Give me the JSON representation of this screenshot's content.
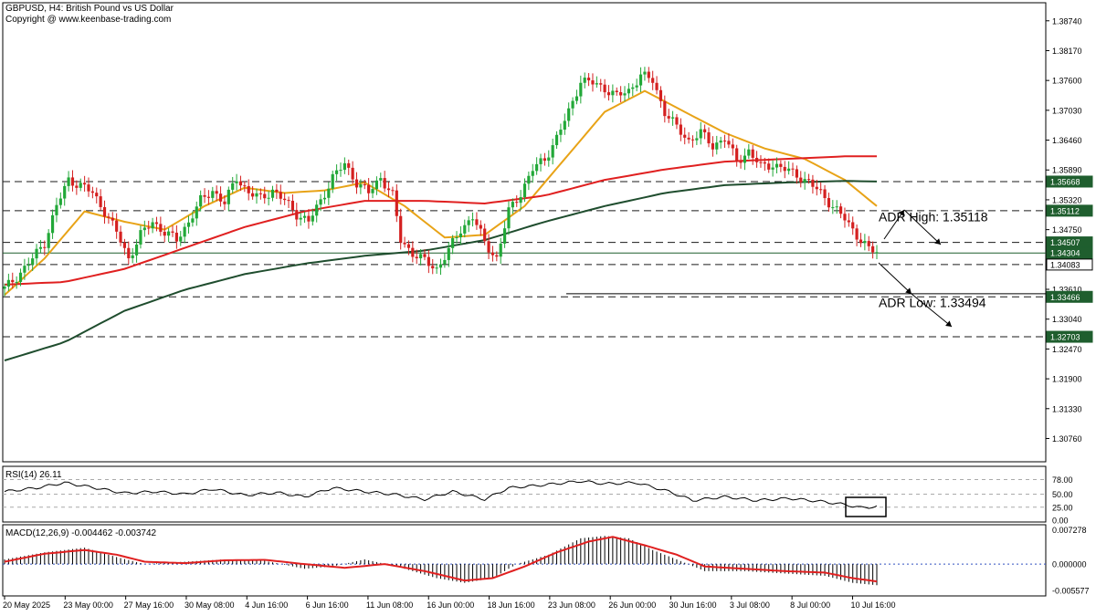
{
  "header": {
    "title": "GBPUSD, H4:  British Pound vs US Dollar",
    "copyright": "Copyright @ www.keenbase-trading.com"
  },
  "chart_data": {
    "type": "candlestick",
    "symbol": "GBPUSD",
    "timeframe": "H4",
    "price_axis": {
      "range": [
        1.3035,
        1.3905
      ],
      "ticks": [
        "1.38740",
        "1.38170",
        "1.37600",
        "1.37030",
        "1.36460",
        "1.35890",
        "1.35320",
        "1.34750",
        "1.33610",
        "1.33040",
        "1.32470",
        "1.31900",
        "1.31330",
        "1.30760"
      ]
    },
    "time_axis": {
      "labels": [
        "20 May 2025",
        "23 May 00:00",
        "27 May 16:00",
        "30 May 08:00",
        "4 Jun 16:00",
        "6 Jun 16:00",
        "11 Jun 08:00",
        "16 Jun 00:00",
        "18 Jun 16:00",
        "23 Jun 08:00",
        "26 Jun 00:00",
        "30 Jun 16:00",
        "3 Jul 08:00",
        "8 Jul 00:00",
        "10 Jul 16:00"
      ]
    },
    "close_path": [
      [
        0,
        1.3362
      ],
      [
        3,
        1.3385
      ],
      [
        6,
        1.341
      ],
      [
        10,
        1.345
      ],
      [
        13,
        1.352
      ],
      [
        16,
        1.357
      ],
      [
        19,
        1.356
      ],
      [
        22,
        1.3545
      ],
      [
        25,
        1.351
      ],
      [
        28,
        1.347
      ],
      [
        31,
        1.342
      ],
      [
        34,
        1.3465
      ],
      [
        37,
        1.349
      ],
      [
        40,
        1.347
      ],
      [
        43,
        1.3455
      ],
      [
        46,
        1.349
      ],
      [
        49,
        1.353
      ],
      [
        52,
        1.355
      ],
      [
        55,
        1.3525
      ],
      [
        58,
        1.3575
      ],
      [
        61,
        1.3545
      ],
      [
        64,
        1.3535
      ],
      [
        67,
        1.355
      ],
      [
        70,
        1.353
      ],
      [
        73,
        1.3505
      ],
      [
        76,
        1.349
      ],
      [
        79,
        1.353
      ],
      [
        82,
        1.3575
      ],
      [
        85,
        1.36
      ],
      [
        88,
        1.3565
      ],
      [
        91,
        1.3545
      ],
      [
        94,
        1.3575
      ],
      [
        97,
        1.354
      ],
      [
        99,
        1.3455
      ],
      [
        102,
        1.343
      ],
      [
        105,
        1.3415
      ],
      [
        108,
        1.34
      ],
      [
        111,
        1.3435
      ],
      [
        114,
        1.3475
      ],
      [
        117,
        1.35
      ],
      [
        120,
        1.345
      ],
      [
        123,
        1.342
      ],
      [
        126,
        1.351
      ],
      [
        129,
        1.3545
      ],
      [
        132,
        1.359
      ],
      [
        135,
        1.361
      ],
      [
        138,
        1.365
      ],
      [
        141,
        1.37
      ],
      [
        144,
        1.376
      ],
      [
        147,
        1.3755
      ],
      [
        150,
        1.3745
      ],
      [
        153,
        1.373
      ],
      [
        156,
        1.374
      ],
      [
        159,
        1.377
      ],
      [
        162,
        1.376
      ],
      [
        165,
        1.37
      ],
      [
        168,
        1.367
      ],
      [
        171,
        1.3645
      ],
      [
        174,
        1.366
      ],
      [
        177,
        1.3635
      ],
      [
        180,
        1.365
      ],
      [
        183,
        1.3605
      ],
      [
        186,
        1.3625
      ],
      [
        189,
        1.3595
      ],
      [
        192,
        1.36
      ],
      [
        195,
        1.359
      ],
      [
        198,
        1.358
      ],
      [
        201,
        1.3565
      ],
      [
        204,
        1.3545
      ],
      [
        207,
        1.352
      ],
      [
        210,
        1.3495
      ],
      [
        213,
        1.3465
      ],
      [
        216,
        1.3437
      ],
      [
        218,
        1.3432
      ]
    ],
    "moving_averages": [
      {
        "name": "MA fast",
        "color": "#e8a317",
        "points": [
          [
            0,
            1.335
          ],
          [
            10,
            1.342
          ],
          [
            20,
            1.351
          ],
          [
            30,
            1.349
          ],
          [
            40,
            1.3475
          ],
          [
            50,
            1.352
          ],
          [
            60,
            1.3555
          ],
          [
            70,
            1.3545
          ],
          [
            80,
            1.355
          ],
          [
            90,
            1.3565
          ],
          [
            100,
            1.352
          ],
          [
            110,
            1.346
          ],
          [
            120,
            1.3465
          ],
          [
            130,
            1.352
          ],
          [
            140,
            1.361
          ],
          [
            150,
            1.37
          ],
          [
            160,
            1.374
          ],
          [
            170,
            1.37
          ],
          [
            180,
            1.366
          ],
          [
            190,
            1.363
          ],
          [
            200,
            1.361
          ],
          [
            210,
            1.357
          ],
          [
            218,
            1.352
          ]
        ]
      },
      {
        "name": "MA medium",
        "color": "#e02020",
        "points": [
          [
            0,
            1.337
          ],
          [
            15,
            1.3375
          ],
          [
            30,
            1.34
          ],
          [
            45,
            1.344
          ],
          [
            60,
            1.348
          ],
          [
            75,
            1.351
          ],
          [
            90,
            1.353
          ],
          [
            105,
            1.353
          ],
          [
            120,
            1.3525
          ],
          [
            135,
            1.354
          ],
          [
            150,
            1.357
          ],
          [
            165,
            1.359
          ],
          [
            180,
            1.3605
          ],
          [
            195,
            1.361
          ],
          [
            210,
            1.3615
          ],
          [
            218,
            1.3615
          ]
        ]
      },
      {
        "name": "MA slow",
        "color": "#1f4d2e",
        "points": [
          [
            0,
            1.3225
          ],
          [
            15,
            1.326
          ],
          [
            30,
            1.332
          ],
          [
            45,
            1.336
          ],
          [
            60,
            1.339
          ],
          [
            75,
            1.341
          ],
          [
            90,
            1.3425
          ],
          [
            105,
            1.3435
          ],
          [
            120,
            1.3455
          ],
          [
            135,
            1.349
          ],
          [
            150,
            1.352
          ],
          [
            165,
            1.3545
          ],
          [
            180,
            1.356
          ],
          [
            195,
            1.3565
          ],
          [
            210,
            1.3568
          ],
          [
            218,
            1.3567
          ]
        ]
      }
    ],
    "levels": [
      {
        "label": "1.35668",
        "value": 1.35668,
        "style": "dashed",
        "badge": "#1f5e2e"
      },
      {
        "label": "1.35112",
        "value": 1.35112,
        "style": "dashed",
        "badge": "#1f5e2e"
      },
      {
        "label": "1.34507",
        "value": 1.34507,
        "style": "dashed",
        "badge": "#1f5e2e"
      },
      {
        "label": "1.34304",
        "value": 1.34304,
        "style": "solid",
        "badge": "#1f5e2e"
      },
      {
        "label": "1.34083",
        "value": 1.34083,
        "style": "dashed",
        "badge": "#ffffff"
      },
      {
        "label": "1.33466",
        "value": 1.33466,
        "style": "dashed",
        "badge": "#1f5e2e"
      },
      {
        "label": "1.32703",
        "value": 1.32703,
        "style": "dashed",
        "badge": "#1f5e2e"
      }
    ],
    "annotations": [
      {
        "text": "ADR High:  1.35118",
        "value": 1.35118
      },
      {
        "text": "ADR Low:  1.33494",
        "value": 1.33494
      }
    ],
    "rsi": {
      "label": "RSI(14) 26.11",
      "range": [
        0,
        100
      ],
      "ticks": [
        "78.00",
        "50.00",
        "25.00",
        "0.00"
      ],
      "points": [
        [
          0,
          55
        ],
        [
          8,
          62
        ],
        [
          15,
          72
        ],
        [
          22,
          63
        ],
        [
          30,
          52
        ],
        [
          38,
          55
        ],
        [
          45,
          50
        ],
        [
          52,
          60
        ],
        [
          60,
          48
        ],
        [
          68,
          53
        ],
        [
          75,
          45
        ],
        [
          82,
          62
        ],
        [
          90,
          55
        ],
        [
          97,
          50
        ],
        [
          105,
          40
        ],
        [
          112,
          55
        ],
        [
          120,
          40
        ],
        [
          126,
          62
        ],
        [
          135,
          68
        ],
        [
          144,
          75
        ],
        [
          150,
          70
        ],
        [
          158,
          72
        ],
        [
          166,
          55
        ],
        [
          172,
          38
        ],
        [
          180,
          45
        ],
        [
          188,
          38
        ],
        [
          196,
          42
        ],
        [
          204,
          36
        ],
        [
          210,
          30
        ],
        [
          214,
          24
        ],
        [
          218,
          26
        ]
      ]
    },
    "macd": {
      "label": "MACD(12,26,9) -0.004462 -0.003742",
      "range": [
        -0.0062,
        0.0078
      ],
      "ticks": [
        "0.007278",
        "0.000000",
        "-0.005577"
      ],
      "histogram": [
        [
          0,
          0.001
        ],
        [
          10,
          0.0025
        ],
        [
          20,
          0.0035
        ],
        [
          28,
          0.0015
        ],
        [
          35,
          0.0
        ],
        [
          45,
          0.0005
        ],
        [
          55,
          0.001
        ],
        [
          65,
          0.0007
        ],
        [
          75,
          -0.001
        ],
        [
          82,
          -0.0005
        ],
        [
          90,
          0.001
        ],
        [
          98,
          -0.0005
        ],
        [
          108,
          -0.003
        ],
        [
          115,
          -0.004
        ],
        [
          122,
          -0.003
        ],
        [
          128,
          0.0
        ],
        [
          136,
          0.002
        ],
        [
          144,
          0.0055
        ],
        [
          150,
          0.006
        ],
        [
          156,
          0.0055
        ],
        [
          162,
          0.003
        ],
        [
          168,
          0.001
        ],
        [
          175,
          -0.0015
        ],
        [
          185,
          -0.0015
        ],
        [
          195,
          -0.002
        ],
        [
          205,
          -0.0025
        ],
        [
          212,
          -0.004
        ],
        [
          218,
          -0.0045
        ]
      ],
      "signal": [
        [
          0,
          0.0005
        ],
        [
          10,
          0.0022
        ],
        [
          20,
          0.003
        ],
        [
          28,
          0.002
        ],
        [
          35,
          0.0005
        ],
        [
          45,
          0.0002
        ],
        [
          55,
          0.0008
        ],
        [
          65,
          0.0009
        ],
        [
          75,
          0.0
        ],
        [
          85,
          -0.0008
        ],
        [
          95,
          0.0
        ],
        [
          105,
          -0.0015
        ],
        [
          115,
          -0.0035
        ],
        [
          122,
          -0.003
        ],
        [
          130,
          -0.0005
        ],
        [
          138,
          0.0025
        ],
        [
          146,
          0.0048
        ],
        [
          152,
          0.0058
        ],
        [
          160,
          0.004
        ],
        [
          168,
          0.002
        ],
        [
          175,
          -0.0005
        ],
        [
          185,
          -0.001
        ],
        [
          195,
          -0.0015
        ],
        [
          205,
          -0.0018
        ],
        [
          212,
          -0.003
        ],
        [
          218,
          -0.0037
        ]
      ]
    }
  }
}
